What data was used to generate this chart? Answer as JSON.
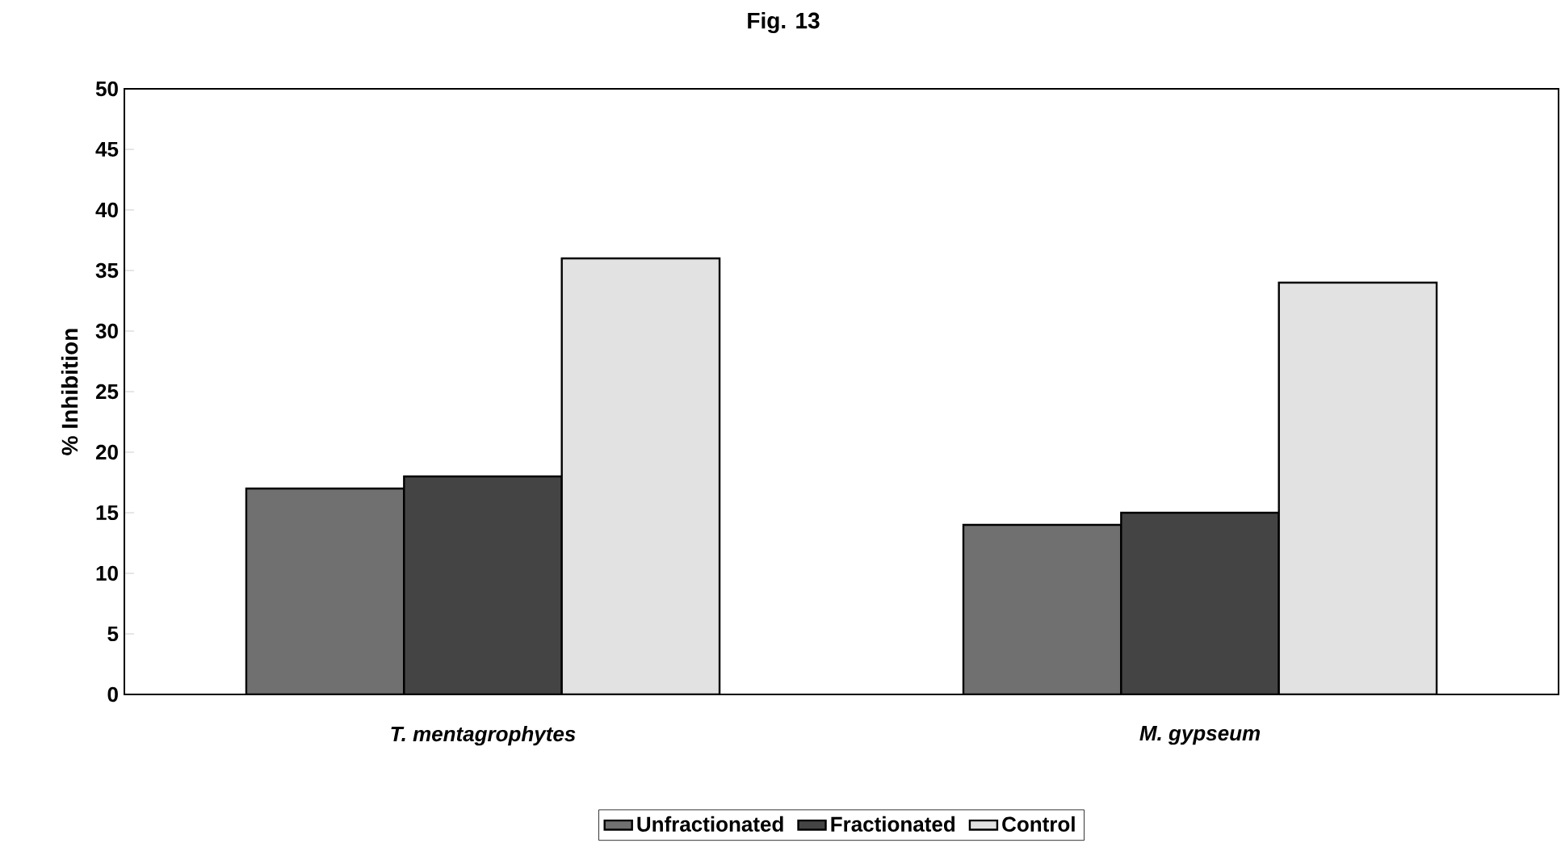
{
  "chart_data": {
    "type": "bar",
    "title": "Fig. 13",
    "ylabel": "% Inhibition",
    "categories": [
      "*T. mentagrophytes*",
      "*M. gypseum*"
    ],
    "series": [
      {
        "name": "Unfractionated",
        "color": "#707070",
        "values": [
          17,
          14
        ]
      },
      {
        "name": "Fractionated",
        "color": "#444444",
        "values": [
          18,
          15
        ]
      },
      {
        "name": "Control",
        "color": "#e2e2e2",
        "values": [
          36,
          34
        ]
      }
    ],
    "ylim": [
      0,
      50
    ],
    "yticks": [
      0,
      5,
      10,
      15,
      20,
      25,
      30,
      35,
      40,
      45,
      50
    ],
    "grid": false,
    "legend": "bottom"
  }
}
